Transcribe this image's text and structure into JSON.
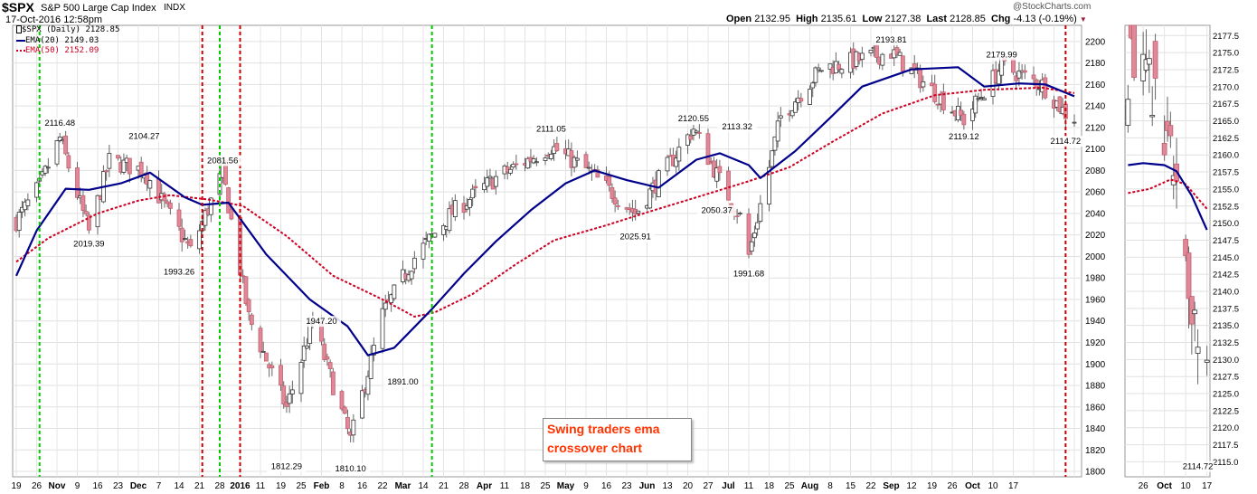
{
  "header": {
    "symbol": "$SPX",
    "name": "S&P 500 Large Cap Index",
    "exchange": "INDX",
    "date": "17-Oct-2016 12:58pm",
    "watermark": "@StockCharts.com",
    "open_label": "Open",
    "open": "2132.95",
    "high_label": "High",
    "high": "2135.61",
    "low_label": "Low",
    "low": "2127.38",
    "last_label": "Last",
    "last": "2128.85",
    "chg_label": "Chg",
    "chg": "-4.13 (-0.19%)"
  },
  "legend": {
    "price": "$SPX (Daily) 2128.85",
    "ema20": "EMA(20) 2149.03",
    "ema50": "EMA(50) 2152.09"
  },
  "annotation": {
    "line1": "Swing traders ema",
    "line2": "crossover chart"
  },
  "colors": {
    "ema20": "#00008b",
    "ema50": "#cc0022",
    "buy_signal": "#00cc00",
    "sell_signal": "#cc0000",
    "down_candle": "#e08898",
    "up_candle": "#ffffff"
  },
  "chart_data": [
    {
      "type": "candlestick",
      "title": "$SPX (Daily)",
      "x_tick_labels": [
        "19",
        "26",
        "Nov",
        "9",
        "16",
        "23",
        "Dec",
        "7",
        "14",
        "21",
        "28",
        "2016",
        "11",
        "19",
        "25",
        "Feb",
        "8",
        "16",
        "22",
        "Mar",
        "14",
        "21",
        "28",
        "Apr",
        "11",
        "18",
        "25",
        "May",
        "9",
        "16",
        "23",
        "Jun",
        "13",
        "20",
        "27",
        "Jul",
        "11",
        "18",
        "25",
        "Aug",
        "8",
        "15",
        "22",
        "Sep",
        "12",
        "19",
        "26",
        "Oct",
        "10",
        "17"
      ],
      "y_ticks": [
        1800,
        1820,
        1840,
        1860,
        1880,
        1900,
        1920,
        1940,
        1960,
        1980,
        2000,
        2020,
        2040,
        2060,
        2080,
        2100,
        2120,
        2140,
        2160,
        2180,
        2200
      ],
      "ylim": [
        1795,
        2215
      ],
      "x_range": [
        "2015-10-19",
        "2016-10-17"
      ],
      "price_points": [
        [
          "2015-10-19",
          2033
        ],
        [
          "2015-10-27",
          2065
        ],
        [
          "2015-11-03",
          2110
        ],
        [
          "2015-11-13",
          2023
        ],
        [
          "2015-11-20",
          2089
        ],
        [
          "2015-12-02",
          2080
        ],
        [
          "2015-12-09",
          2047
        ],
        [
          "2015-12-18",
          2005
        ],
        [
          "2015-12-29",
          2078
        ],
        [
          "2016-01-07",
          1943
        ],
        [
          "2016-01-20",
          1859
        ],
        [
          "2016-01-29",
          1940
        ],
        [
          "2016-02-11",
          1829
        ],
        [
          "2016-02-22",
          1946
        ],
        [
          "2016-03-04",
          1999
        ],
        [
          "2016-03-17",
          2041
        ],
        [
          "2016-04-01",
          2073
        ],
        [
          "2016-04-20",
          2102
        ],
        [
          "2016-05-02",
          2081
        ],
        [
          "2016-05-19",
          2040
        ],
        [
          "2016-06-08",
          2119
        ],
        [
          "2016-06-17",
          2071
        ],
        [
          "2016-06-24",
          2037
        ],
        [
          "2016-06-27",
          2001
        ],
        [
          "2016-07-08",
          2130
        ],
        [
          "2016-07-22",
          2175
        ],
        [
          "2016-08-15",
          2190
        ],
        [
          "2016-09-09",
          2127
        ],
        [
          "2016-09-22",
          2177
        ],
        [
          "2016-10-06",
          2160
        ],
        [
          "2016-10-14",
          2133
        ],
        [
          "2016-10-17",
          2129
        ]
      ],
      "ema20_points": [
        [
          "2015-10-19",
          1982
        ],
        [
          "2015-10-26",
          2024
        ],
        [
          "2015-11-05",
          2063
        ],
        [
          "2015-11-13",
          2062
        ],
        [
          "2015-11-24",
          2068
        ],
        [
          "2015-12-04",
          2078
        ],
        [
          "2015-12-16",
          2055
        ],
        [
          "2015-12-22",
          2048
        ],
        [
          "2015-12-31",
          2050
        ],
        [
          "2016-01-13",
          2002
        ],
        [
          "2016-01-28",
          1960
        ],
        [
          "2016-02-10",
          1935
        ],
        [
          "2016-02-17",
          1908
        ],
        [
          "2016-02-26",
          1915
        ],
        [
          "2016-03-10",
          1951
        ],
        [
          "2016-03-21",
          1984
        ],
        [
          "2016-04-01",
          2014
        ],
        [
          "2016-04-13",
          2043
        ],
        [
          "2016-04-25",
          2068
        ],
        [
          "2016-05-05",
          2080
        ],
        [
          "2016-05-16",
          2071
        ],
        [
          "2016-05-27",
          2064
        ],
        [
          "2016-06-09",
          2090
        ],
        [
          "2016-06-17",
          2096
        ],
        [
          "2016-06-27",
          2085
        ],
        [
          "2016-07-01",
          2073
        ],
        [
          "2016-07-13",
          2098
        ],
        [
          "2016-07-25",
          2129
        ],
        [
          "2016-08-05",
          2158
        ],
        [
          "2016-08-22",
          2174
        ],
        [
          "2016-09-07",
          2176
        ],
        [
          "2016-09-16",
          2158
        ],
        [
          "2016-09-28",
          2161
        ],
        [
          "2016-10-07",
          2160
        ],
        [
          "2016-10-17",
          2149
        ]
      ],
      "ema50_points": [
        [
          "2015-10-19",
          1995
        ],
        [
          "2015-10-30",
          2017
        ],
        [
          "2015-11-16",
          2040
        ],
        [
          "2015-11-30",
          2052
        ],
        [
          "2015-12-11",
          2057
        ],
        [
          "2015-12-24",
          2053
        ],
        [
          "2016-01-05",
          2047
        ],
        [
          "2016-01-20",
          2019
        ],
        [
          "2016-02-05",
          1982
        ],
        [
          "2016-02-22",
          1960
        ],
        [
          "2016-03-04",
          1944
        ],
        [
          "2016-03-11",
          1948
        ],
        [
          "2016-03-24",
          1965
        ],
        [
          "2016-04-08",
          1993
        ],
        [
          "2016-04-21",
          2015
        ],
        [
          "2016-05-09",
          2029
        ],
        [
          "2016-05-23",
          2041
        ],
        [
          "2016-06-09",
          2055
        ],
        [
          "2016-06-27",
          2070
        ],
        [
          "2016-07-11",
          2083
        ],
        [
          "2016-07-26",
          2107
        ],
        [
          "2016-08-12",
          2133
        ],
        [
          "2016-08-30",
          2150
        ],
        [
          "2016-09-16",
          2155
        ],
        [
          "2016-10-06",
          2157
        ],
        [
          "2016-10-17",
          2152
        ]
      ],
      "series": [
        {
          "name": "$SPX (Daily)",
          "last": 2128.85
        },
        {
          "name": "EMA(20)",
          "last": 2149.03
        },
        {
          "name": "EMA(50)",
          "last": 2152.09
        }
      ],
      "price_annotations": [
        {
          "date": "2015-11-03",
          "value": 2116.48,
          "label": "2116.48"
        },
        {
          "date": "2015-11-13",
          "value": 2019.39,
          "label": "2019.39"
        },
        {
          "date": "2015-12-02",
          "value": 2104.27,
          "label": "2104.27"
        },
        {
          "date": "2015-12-14",
          "value": 1993.26,
          "label": "1993.26"
        },
        {
          "date": "2015-12-29",
          "value": 2081.56,
          "label": "2081.56"
        },
        {
          "date": "2016-01-20",
          "value": 1812.29,
          "label": "1812.29"
        },
        {
          "date": "2016-02-01",
          "value": 1947.2,
          "label": "1947.20"
        },
        {
          "date": "2016-02-11",
          "value": 1810.1,
          "label": "1810.10"
        },
        {
          "date": "2016-02-29",
          "value": 1891.0,
          "label": "1891.00"
        },
        {
          "date": "2016-04-20",
          "value": 2111.05,
          "label": "2111.05"
        },
        {
          "date": "2016-05-19",
          "value": 2025.91,
          "label": "2025.91"
        },
        {
          "date": "2016-06-08",
          "value": 2120.55,
          "label": "2120.55"
        },
        {
          "date": "2016-06-16",
          "value": 2050.37,
          "label": "2050.37"
        },
        {
          "date": "2016-06-23",
          "value": 2113.32,
          "label": "2113.32"
        },
        {
          "date": "2016-06-27",
          "value": 1991.68,
          "label": "1991.68"
        },
        {
          "date": "2016-08-15",
          "value": 2193.81,
          "label": "2193.81"
        },
        {
          "date": "2016-09-09",
          "value": 2119.12,
          "label": "2119.12"
        },
        {
          "date": "2016-09-22",
          "value": 2179.99,
          "label": "2179.99"
        },
        {
          "date": "2016-10-14",
          "value": 2114.72,
          "label": "2114.72"
        }
      ],
      "signal_lines": [
        {
          "date": "2015-10-27",
          "type": "buy",
          "color": "#00cc00"
        },
        {
          "date": "2015-12-22",
          "type": "sell",
          "color": "#cc0000"
        },
        {
          "date": "2015-12-28",
          "type": "buy",
          "color": "#00cc00"
        },
        {
          "date": "2016-01-04",
          "type": "sell",
          "color": "#cc0000"
        },
        {
          "date": "2016-03-10",
          "type": "buy",
          "color": "#00cc00"
        },
        {
          "date": "2016-10-14",
          "type": "sell",
          "color": "#cc0000"
        }
      ],
      "grid": true
    },
    {
      "type": "candlestick",
      "title": "",
      "x_tick_labels": [
        "26",
        "Oct",
        "10",
        "17"
      ],
      "y_ticks": [
        2115.0,
        2117.5,
        2120.0,
        2122.5,
        2125.0,
        2127.5,
        2130.0,
        2132.5,
        2135.0,
        2137.5,
        2140.0,
        2142.5,
        2145.0,
        2147.5,
        2150.0,
        2152.5,
        2155.0,
        2157.5,
        2160.0,
        2162.5,
        2165.0,
        2167.5,
        2170.0,
        2172.5,
        2175.0,
        2177.5
      ],
      "tick_labels": [
        "2177.5",
        "2175.0",
        "2172.5",
        "2170.0",
        "2167.5",
        "2165.0",
        "2162.5",
        "2160.0",
        "2157.5",
        "2155.0",
        "2152.5",
        "2150.0",
        "2147.5",
        "2145.0",
        "2142.5",
        "2140.0",
        "2137.5",
        "2135.0",
        "2132.5",
        "2130.0",
        "2127.5",
        "2125.0",
        "2122.5",
        "2120.0",
        "2117.5",
        "2115.0"
      ],
      "ylim": [
        2112.8,
        2179.0
      ],
      "ema20_points": [
        [
          "2016-09-21",
          2158.5
        ],
        [
          "2016-09-26",
          2158.8
        ],
        [
          "2016-10-03",
          2158.5
        ],
        [
          "2016-10-07",
          2157.6
        ],
        [
          "2016-10-12",
          2154.0
        ],
        [
          "2016-10-17",
          2149.0
        ]
      ],
      "ema50_points": [
        [
          "2016-09-21",
          2154.4
        ],
        [
          "2016-09-28",
          2155.0
        ],
        [
          "2016-10-05",
          2156.4
        ],
        [
          "2016-10-10",
          2155.7
        ],
        [
          "2016-10-17",
          2152.1
        ]
      ],
      "price_annotations": [
        {
          "date": "2016-10-14",
          "value": 2114.72,
          "label": "2114.72"
        }
      ],
      "grid": true
    }
  ]
}
